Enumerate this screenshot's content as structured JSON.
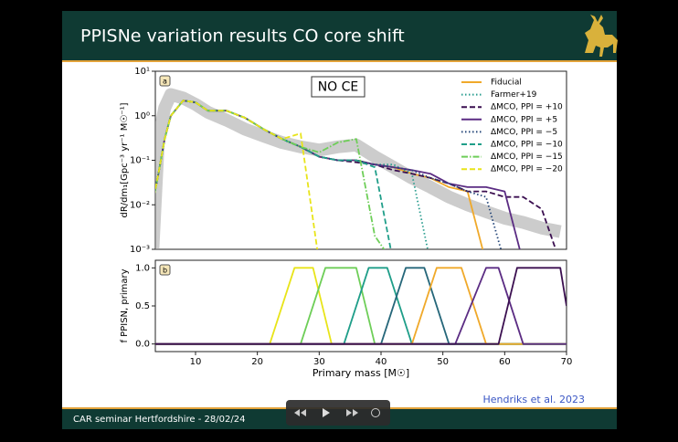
{
  "slide": {
    "title": "PPISNe variation results CO core shift",
    "footer": "CAR seminar Hertfordshire - 28/02/24",
    "citation": "Hendriks et al. 2023"
  },
  "chart_data": [
    {
      "type": "line",
      "panel_label": "a",
      "annotation": "NO CE",
      "ylabel": "dR/dm₁[Gpc⁻³ yr⁻¹ M☉⁻¹]",
      "log_y": true,
      "legend": "upper right",
      "xlim": [
        3.5,
        70
      ],
      "ylim": [
        0.001,
        10
      ],
      "yticks": [
        {
          "value": 0.001,
          "label": "10⁻³"
        },
        {
          "value": 0.01,
          "label": "10⁻²"
        },
        {
          "value": 0.1,
          "label": "10⁻¹"
        },
        {
          "value": 1,
          "label": "10⁰"
        },
        {
          "value": 10,
          "label": "10¹"
        }
      ],
      "x": [
        3,
        4,
        5,
        6,
        8,
        10,
        12,
        15,
        18,
        21,
        24,
        27,
        30,
        33,
        36,
        39,
        42,
        45,
        48,
        51,
        54,
        57,
        60,
        63,
        66,
        69
      ],
      "series": [
        {
          "color": "#999999",
          "linestyle": "band",
          "values": [
            0.0005,
            0.3,
            1.5,
            3,
            2.5,
            1.8,
            1.2,
            0.8,
            0.5,
            0.35,
            0.25,
            0.2,
            0.17,
            0.2,
            0.22,
            0.12,
            0.07,
            0.04,
            0.025,
            0.015,
            0.01,
            0.007,
            0.005,
            0.004,
            0.003,
            0.0025
          ]
        },
        {
          "name": "Fiducial",
          "color": "#f0a92a",
          "linestyle": "solid",
          "values": [
            0.01,
            0.05,
            0.3,
            1.0,
            2.2,
            2.0,
            1.3,
            1.3,
            0.9,
            0.5,
            0.3,
            0.2,
            0.12,
            0.1,
            0.1,
            0.08,
            0.07,
            0.05,
            0.04,
            0.025,
            0.02,
            0.0005,
            null,
            null,
            null,
            null
          ]
        },
        {
          "name": "Farmer+19",
          "color": "#2a9d8f",
          "linestyle": "dotted",
          "values": [
            0.01,
            0.05,
            0.3,
            1.0,
            2.2,
            2.0,
            1.3,
            1.3,
            0.9,
            0.5,
            0.3,
            0.2,
            0.12,
            0.1,
            0.1,
            0.08,
            0.08,
            0.05,
            0.0005,
            null,
            null,
            null,
            null,
            null,
            null,
            null
          ]
        },
        {
          "name": "ΔMCO, PPI = +10",
          "color": "#3b0f50",
          "linestyle": "dashed",
          "values": [
            0.01,
            0.05,
            0.3,
            1.0,
            2.2,
            2.0,
            1.3,
            1.3,
            0.9,
            0.5,
            0.3,
            0.2,
            0.12,
            0.1,
            0.09,
            0.08,
            0.06,
            0.05,
            0.04,
            0.03,
            0.02,
            0.02,
            0.015,
            0.015,
            0.008,
            0.0005
          ]
        },
        {
          "name": "ΔMCO, PPI = +5",
          "color": "#5b2c83",
          "linestyle": "solid",
          "values": [
            0.01,
            0.05,
            0.3,
            1.0,
            2.2,
            2.0,
            1.3,
            1.3,
            0.9,
            0.5,
            0.3,
            0.2,
            0.12,
            0.1,
            0.1,
            0.08,
            0.07,
            0.06,
            0.05,
            0.03,
            0.025,
            0.025,
            0.02,
            0.0005,
            null,
            null
          ]
        },
        {
          "name": "ΔMCO, PPI = −5",
          "color": "#26477a",
          "linestyle": "dotted",
          "values": [
            0.01,
            0.05,
            0.3,
            1.0,
            2.2,
            2.0,
            1.3,
            1.3,
            0.9,
            0.5,
            0.3,
            0.2,
            0.12,
            0.1,
            0.1,
            0.08,
            0.07,
            0.06,
            0.04,
            0.03,
            0.02,
            0.015,
            0.0005,
            null,
            null,
            null
          ]
        },
        {
          "name": "ΔMCO, PPI = −10",
          "color": "#1f9e89",
          "linestyle": "dashed",
          "values": [
            0.01,
            0.05,
            0.3,
            1.0,
            2.2,
            2.0,
            1.3,
            1.3,
            0.9,
            0.5,
            0.3,
            0.2,
            0.12,
            0.1,
            0.1,
            0.07,
            0.0005,
            null,
            null,
            null,
            null,
            null,
            null,
            null,
            null,
            null
          ]
        },
        {
          "name": "ΔMCO, PPI = −15",
          "color": "#6ece58",
          "linestyle": "dashdot",
          "values": [
            0.01,
            0.05,
            0.3,
            1.0,
            2.2,
            2.0,
            1.3,
            1.3,
            0.9,
            0.5,
            0.3,
            0.2,
            0.15,
            0.25,
            0.3,
            0.002,
            0.0005,
            null,
            null,
            null,
            null,
            null,
            null,
            null,
            null,
            null
          ]
        },
        {
          "name": "ΔMCO, PPI = −20",
          "color": "#e8e419",
          "linestyle": "dashed",
          "values": [
            0.01,
            0.05,
            0.3,
            1.0,
            2.2,
            2.0,
            1.3,
            1.3,
            0.9,
            0.5,
            0.3,
            0.4,
            0.0005,
            null,
            null,
            null,
            null,
            null,
            null,
            null,
            null,
            null,
            null,
            null,
            null,
            null
          ]
        }
      ]
    },
    {
      "type": "line",
      "panel_label": "b",
      "xlabel": "Primary mass [M☉]",
      "ylabel": "f PPISN, primary",
      "xlim": [
        3.5,
        70
      ],
      "ylim": [
        -0.1,
        1.1
      ],
      "xticks": [
        10,
        20,
        30,
        40,
        50,
        60,
        70
      ],
      "yticks": [
        {
          "value": 0,
          "label": "0.0"
        },
        {
          "value": 0.5,
          "label": "0.5"
        },
        {
          "value": 1,
          "label": "1.0"
        }
      ],
      "series": [
        {
          "color": "#e8e419",
          "linestyle": "solid",
          "x": [
            3,
            22,
            26,
            29,
            32,
            70
          ],
          "values": [
            0,
            0,
            1,
            1,
            0,
            0
          ]
        },
        {
          "color": "#6ece58",
          "linestyle": "solid",
          "x": [
            3,
            27,
            31,
            36,
            39,
            70
          ],
          "values": [
            0,
            0,
            1,
            1,
            0,
            0
          ]
        },
        {
          "color": "#1f9e89",
          "linestyle": "solid",
          "x": [
            3,
            34,
            38,
            41,
            45,
            70
          ],
          "values": [
            0,
            0,
            1,
            1,
            0,
            0
          ]
        },
        {
          "color": "#26677a",
          "linestyle": "solid",
          "x": [
            3,
            40,
            44,
            47,
            51,
            70
          ],
          "values": [
            0,
            0,
            1,
            1,
            0,
            0
          ]
        },
        {
          "color": "#f0a92a",
          "linestyle": "solid",
          "x": [
            3,
            45,
            49,
            53,
            57,
            70
          ],
          "values": [
            0,
            0,
            1,
            1,
            0,
            0
          ]
        },
        {
          "color": "#5b2c83",
          "linestyle": "solid",
          "x": [
            3,
            52,
            57,
            59,
            63,
            70
          ],
          "values": [
            0,
            0,
            1,
            1,
            0,
            0
          ]
        },
        {
          "color": "#3b0f50",
          "linestyle": "solid",
          "x": [
            3,
            59,
            62,
            69,
            70
          ],
          "values": [
            0,
            0,
            1,
            1,
            0.5
          ]
        }
      ]
    }
  ]
}
